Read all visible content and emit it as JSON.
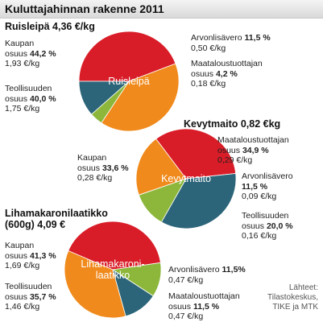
{
  "header": {
    "title": "Kuluttajahinnan rakenne 2011"
  },
  "source": {
    "line1": "Lähteet:",
    "line2": "Tilastokeskus,",
    "line3": "TIKE ja MTK"
  },
  "colors": {
    "red": "#d91d28",
    "orange": "#f08a1c",
    "teal": "#2c6579",
    "green": "#8cb73a"
  },
  "labels": {
    "kaupan": "Kaupan",
    "osuus": "osuus",
    "teollisuuden": "Teollisuuden",
    "maatalous": "Maataloustuottajan",
    "arvonlisavero": "Arvonlisävero"
  },
  "chart_data": [
    {
      "type": "pie",
      "title": "Ruisleipä 4,36 €/kg",
      "center_label": "Ruisleipä",
      "slices": [
        {
          "name": "Kaupan osuus",
          "percent": 44.2,
          "percent_text": "44,2 %",
          "value_text": "1,93 €/kg",
          "color": "#d91d28"
        },
        {
          "name": "Teollisuuden osuus",
          "percent": 40.0,
          "percent_text": "40,0 %",
          "value_text": "1,75 €/kg",
          "color": "#f08a1c"
        },
        {
          "name": "Maataloustuottajan osuus",
          "percent": 4.2,
          "percent_text": "4,2 %",
          "value_text": "0,18 €/kg",
          "color": "#8cb73a"
        },
        {
          "name": "Arvonlisävero",
          "percent": 11.5,
          "percent_text": "11,5 %",
          "value_text": "0,50 €/kg",
          "color": "#2c6579"
        }
      ]
    },
    {
      "type": "pie",
      "title": "Kevytmaito 0,82 €kg",
      "center_label": "Kevytmaito",
      "slices": [
        {
          "name": "Kaupan osuus",
          "percent": 33.6,
          "percent_text": "33,6 %",
          "value_text": "0,28 €/kg",
          "color": "#d91d28"
        },
        {
          "name": "Maataloustuottajan osuus",
          "percent": 34.9,
          "percent_text": "34,9 %",
          "value_text": "0,29 €/kg",
          "color": "#2c6579"
        },
        {
          "name": "Arvonlisävero",
          "percent": 11.5,
          "percent_text": "11,5 %",
          "value_text": "0,09 €/kg",
          "color": "#8cb73a"
        },
        {
          "name": "Teollisuuden osuus",
          "percent": 20.0,
          "percent_text": "20,0 %",
          "value_text": "0,16 €/kg",
          "color": "#f08a1c"
        }
      ]
    },
    {
      "type": "pie",
      "title_line1": "Lihamakaronilaatikko",
      "title_line2": "(600g) 4,09 €",
      "center_label_line1": "Lihamakaroni-",
      "center_label_line2": "laatikko",
      "slices": [
        {
          "name": "Kaupan osuus",
          "percent": 41.3,
          "percent_text": "41,3 %",
          "value_text": "1,69 €/kg",
          "color": "#d91d28"
        },
        {
          "name": "Arvonlisävero",
          "percent": 11.5,
          "percent_text": "11,5%",
          "value_text": "0,47 €/kg",
          "color": "#8cb73a"
        },
        {
          "name": "Maataloustuottajan osuus",
          "percent": 11.5,
          "percent_text": "11,5 %",
          "value_text": "0,47 €/kg",
          "color": "#2c6579"
        },
        {
          "name": "Teollisuuden osuus",
          "percent": 35.7,
          "percent_text": "35,7 %",
          "value_text": "1,46 €/kg",
          "color": "#f08a1c"
        }
      ]
    }
  ]
}
